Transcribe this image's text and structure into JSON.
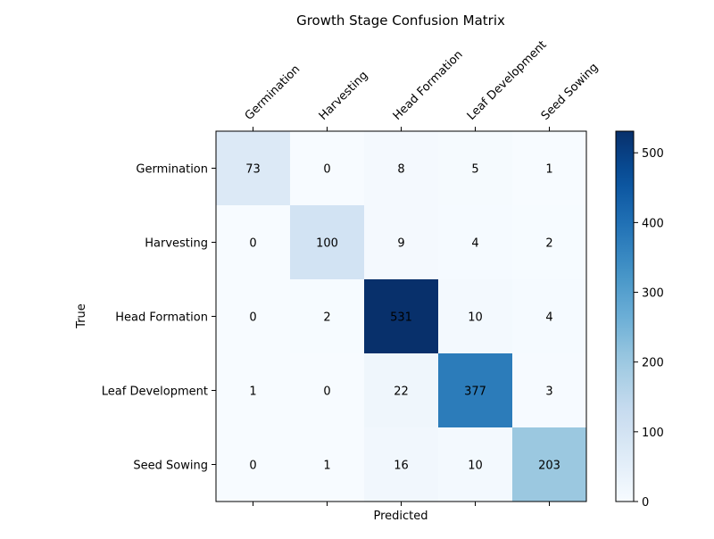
{
  "chart_data": {
    "type": "heatmap",
    "title": "Growth Stage Confusion Matrix",
    "xlabel": "Predicted",
    "ylabel": "True",
    "x_categories": [
      "Germination",
      "Harvesting",
      "Head Formation",
      "Leaf Development",
      "Seed Sowing"
    ],
    "y_categories": [
      "Germination",
      "Harvesting",
      "Head Formation",
      "Leaf Development",
      "Seed Sowing"
    ],
    "values": [
      [
        73,
        0,
        8,
        5,
        1
      ],
      [
        0,
        100,
        9,
        4,
        2
      ],
      [
        0,
        2,
        531,
        10,
        4
      ],
      [
        1,
        0,
        22,
        377,
        3
      ],
      [
        0,
        1,
        16,
        10,
        203
      ]
    ],
    "colormap": "Blues",
    "value_range": [
      0,
      531
    ],
    "colorbar_ticks": [
      0,
      100,
      200,
      300,
      400,
      500
    ],
    "x_tick_position": "top",
    "grid": false
  }
}
